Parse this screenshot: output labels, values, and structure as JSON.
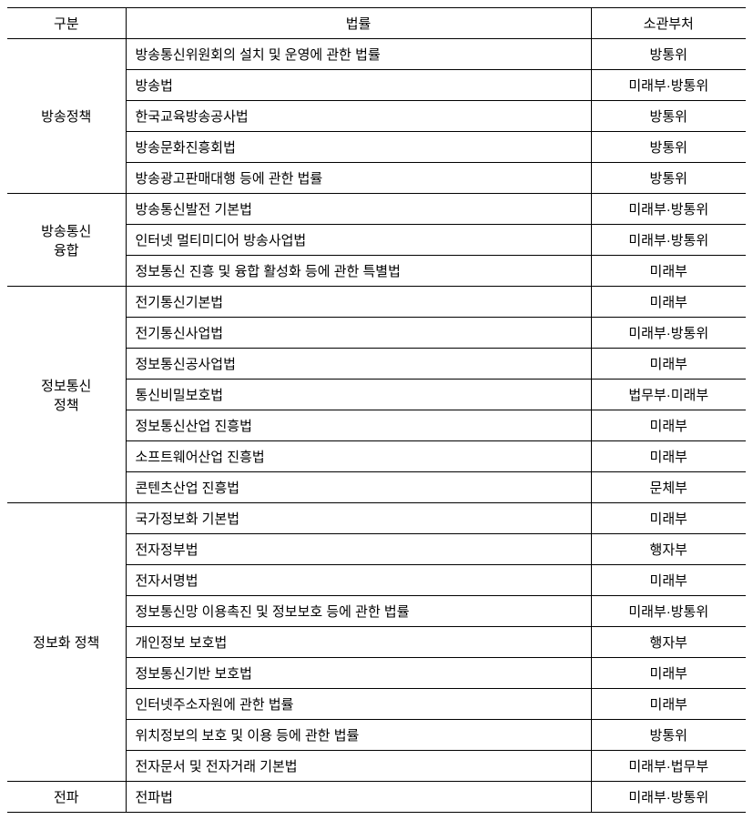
{
  "headers": {
    "category": "구분",
    "law": "법률",
    "department": "소관부처"
  },
  "groups": [
    {
      "category": "방송정책",
      "rows": [
        {
          "law": "방송통신위원회의 설치 및 운영에 관한 법률",
          "dept": "방통위"
        },
        {
          "law": "방송법",
          "dept": "미래부·방통위"
        },
        {
          "law": "한국교육방송공사법",
          "dept": "방통위"
        },
        {
          "law": "방송문화진흥회법",
          "dept": "방통위"
        },
        {
          "law": "방송광고판매대행 등에 관한 법률",
          "dept": "방통위"
        }
      ]
    },
    {
      "category": "방송통신\n융합",
      "rows": [
        {
          "law": "방송통신발전 기본법",
          "dept": "미래부·방통위"
        },
        {
          "law": "인터넷 멀티미디어 방송사업법",
          "dept": "미래부·방통위"
        },
        {
          "law": "정보통신 진흥 및 융합 활성화 등에 관한 특별법",
          "dept": "미래부"
        }
      ]
    },
    {
      "category": "정보통신\n정책",
      "rows": [
        {
          "law": "전기통신기본법",
          "dept": "미래부"
        },
        {
          "law": "전기통신사업법",
          "dept": "미래부·방통위"
        },
        {
          "law": "정보통신공사업법",
          "dept": "미래부"
        },
        {
          "law": "통신비밀보호법",
          "dept": "법무부·미래부"
        },
        {
          "law": "정보통신산업 진흥법",
          "dept": "미래부"
        },
        {
          "law": "소프트웨어산업 진흥법",
          "dept": "미래부"
        },
        {
          "law": "콘텐츠산업 진흥법",
          "dept": "문체부"
        }
      ]
    },
    {
      "category": "정보화 정책",
      "rows": [
        {
          "law": "국가정보화 기본법",
          "dept": "미래부"
        },
        {
          "law": "전자정부법",
          "dept": "행자부"
        },
        {
          "law": "전자서명법",
          "dept": "미래부"
        },
        {
          "law": "정보통신망 이용촉진 및 정보보호 등에 관한 법률",
          "dept": "미래부·방통위"
        },
        {
          "law": "개인정보 보호법",
          "dept": "행자부"
        },
        {
          "law": "정보통신기반 보호법",
          "dept": "미래부"
        },
        {
          "law": "인터넷주소자원에 관한 법률",
          "dept": "미래부"
        },
        {
          "law": "위치정보의 보호 및 이용 등에 관한 법률",
          "dept": "방통위"
        },
        {
          "law": "전자문서 및 전자거래 기본법",
          "dept": "미래부·법무부"
        }
      ]
    },
    {
      "category": "전파",
      "rows": [
        {
          "law": "전파법",
          "dept": "미래부·방통위"
        }
      ]
    }
  ]
}
